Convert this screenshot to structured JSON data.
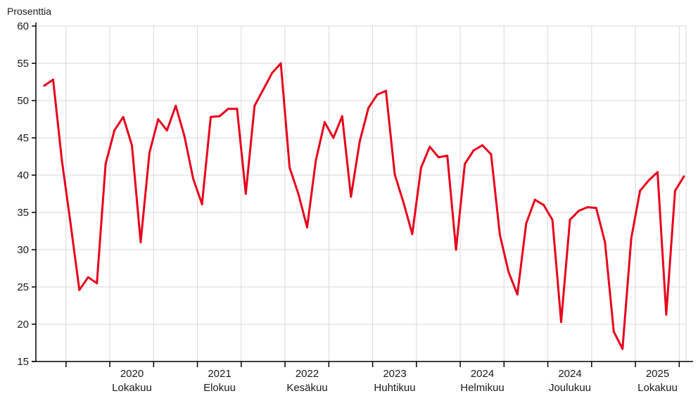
{
  "chart_data": {
    "type": "line",
    "ylabel": "Prosenttia",
    "ylim": [
      15,
      60
    ],
    "yticks": [
      15,
      20,
      25,
      30,
      35,
      40,
      45,
      50,
      55,
      60
    ],
    "grid": true,
    "line_color": "#e8001c",
    "x_axis_labels": [
      {
        "year": "2020",
        "month": "Lokakuu"
      },
      {
        "year": "2021",
        "month": "Elokuu"
      },
      {
        "year": "2022",
        "month": "Kesäkuu"
      },
      {
        "year": "2023",
        "month": "Huhtikuu"
      },
      {
        "year": "2024",
        "month": "Helmikuu"
      },
      {
        "year": "2024",
        "month": "Joulukuu"
      },
      {
        "year": "2025",
        "month": "Lokakuu"
      }
    ],
    "x": [
      "2019-10",
      "2019-11",
      "2019-12",
      "2020-01",
      "2020-02",
      "2020-03",
      "2020-04",
      "2020-05",
      "2020-06",
      "2020-07",
      "2020-08",
      "2020-09",
      "2020-10",
      "2020-11",
      "2020-12",
      "2021-01",
      "2021-02",
      "2021-03",
      "2021-04",
      "2021-05",
      "2021-06",
      "2021-07",
      "2021-08",
      "2021-09",
      "2021-10",
      "2021-11",
      "2021-12",
      "2022-01",
      "2022-02",
      "2022-03",
      "2022-04",
      "2022-05",
      "2022-06",
      "2022-07",
      "2022-08",
      "2022-09",
      "2022-10",
      "2022-11",
      "2022-12",
      "2023-01",
      "2023-02",
      "2023-03",
      "2023-04",
      "2023-05",
      "2023-06",
      "2023-07",
      "2023-08",
      "2023-09",
      "2023-10",
      "2023-11",
      "2023-12",
      "2024-01",
      "2024-02",
      "2024-03",
      "2024-04",
      "2024-05",
      "2024-06",
      "2024-07",
      "2024-08",
      "2024-09",
      "2024-10",
      "2024-11",
      "2024-12",
      "2025-01",
      "2025-02",
      "2025-03",
      "2025-04",
      "2025-05",
      "2025-06",
      "2025-07",
      "2025-08",
      "2025-09",
      "2025-10",
      "2025-11"
    ],
    "values": [
      52.0,
      52.8,
      42.0,
      33.5,
      24.6,
      26.3,
      25.5,
      41.5,
      46.0,
      47.8,
      44.0,
      31.0,
      43.0,
      47.5,
      46.0,
      49.3,
      45.2,
      39.5,
      36.1,
      47.8,
      47.9,
      48.9,
      48.9,
      37.5,
      49.3,
      51.5,
      53.7,
      55.0,
      41.0,
      37.5,
      33.0,
      42.0,
      47.1,
      45.0,
      47.9,
      37.1,
      44.5,
      49.0,
      50.8,
      51.3,
      40.1,
      36.3,
      32.1,
      41.0,
      43.8,
      42.4,
      42.6,
      30.0,
      41.5,
      43.3,
      44.0,
      42.8,
      32.0,
      27.0,
      24.0,
      33.5,
      36.7,
      36.0,
      34.0,
      20.3,
      34.0,
      35.2,
      35.7,
      35.6,
      31.0,
      19.0,
      16.7,
      31.5,
      37.9,
      39.3,
      40.4,
      21.3,
      37.9,
      39.8
    ]
  }
}
